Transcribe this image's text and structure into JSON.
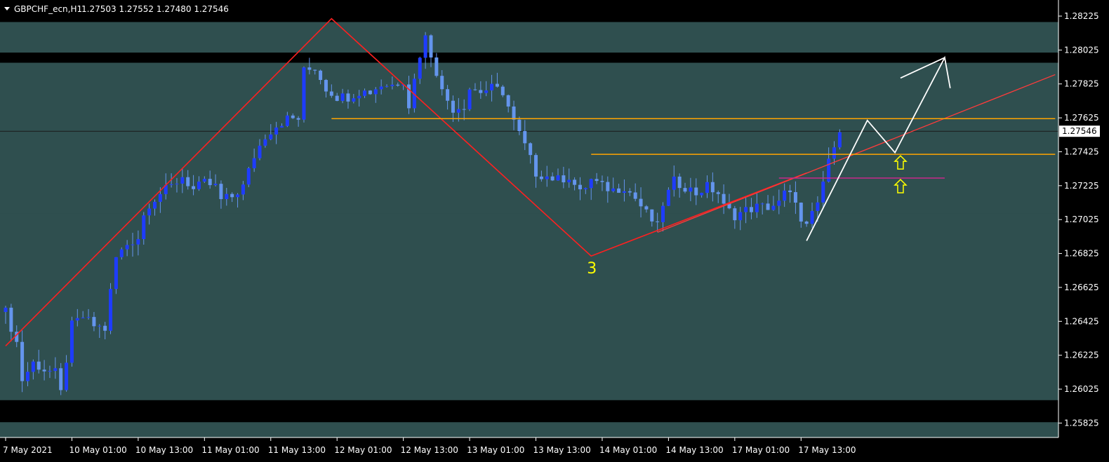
{
  "header": {
    "symbol": "GBPCHF_ecn,H1",
    "ohlc": "1.27503 1.27552 1.27480 1.27546"
  },
  "colors": {
    "background": "#000000",
    "zone_fill": "#2f4f4f",
    "bull_candle": "#1e3cff",
    "bear_candle": "#6495ed",
    "wick": "#6495ed",
    "zigzag": "#ff2020",
    "trendline": "#ff3b3b",
    "orange_line": "#ffa500",
    "magenta_line": "#c8288c",
    "projection": "#ffffff",
    "arrow": "#ffff00",
    "label": "#ffff00",
    "text": "#ffffff",
    "price_tag_bg": "#ffffff"
  },
  "chart_data": {
    "type": "candlestick",
    "symbol": "GBPCHF_ecn",
    "timeframe": "H1",
    "ylim": [
      1.2574,
      1.2832
    ],
    "x_index_range": [
      0,
      190
    ],
    "current_price": "1.27546",
    "y_tick_labels": [
      "1.28225",
      "1.28025",
      "1.27825",
      "1.27625",
      "1.27425",
      "1.27225",
      "1.27025",
      "1.26825",
      "1.26625",
      "1.26425",
      "1.26225",
      "1.26025",
      "1.25825"
    ],
    "x_tick_labels": [
      {
        "label": "7 May 2021",
        "index": 0
      },
      {
        "label": "10 May 01:00",
        "index": 12
      },
      {
        "label": "10 May 13:00",
        "index": 24
      },
      {
        "label": "11 May 01:00",
        "index": 36
      },
      {
        "label": "11 May 13:00",
        "index": 48
      },
      {
        "label": "12 May 01:00",
        "index": 60
      },
      {
        "label": "12 May 13:00",
        "index": 72
      },
      {
        "label": "13 May 01:00",
        "index": 84
      },
      {
        "label": "13 May 13:00",
        "index": 96
      },
      {
        "label": "14 May 01:00",
        "index": 108
      },
      {
        "label": "14 May 13:00",
        "index": 120
      },
      {
        "label": "17 May 01:00",
        "index": 132
      },
      {
        "label": "17 May 13:00",
        "index": 144
      }
    ],
    "close_path": [
      [
        0,
        1.2648
      ],
      [
        2,
        1.263
      ],
      [
        3,
        1.2608
      ],
      [
        5,
        1.2618
      ],
      [
        7,
        1.2614
      ],
      [
        9,
        1.2612
      ],
      [
        10,
        1.26
      ],
      [
        12,
        1.264
      ],
      [
        14,
        1.2645
      ],
      [
        16,
        1.264
      ],
      [
        18,
        1.2638
      ],
      [
        19,
        1.266
      ],
      [
        20,
        1.268
      ],
      [
        22,
        1.2688
      ],
      [
        24,
        1.2692
      ],
      [
        25,
        1.2705
      ],
      [
        26,
        1.2712
      ],
      [
        28,
        1.2718
      ],
      [
        30,
        1.2722
      ],
      [
        32,
        1.2728
      ],
      [
        34,
        1.272
      ],
      [
        36,
        1.2724
      ],
      [
        38,
        1.2722
      ],
      [
        39,
        1.2714
      ],
      [
        41,
        1.2716
      ],
      [
        43,
        1.2722
      ],
      [
        45,
        1.274
      ],
      [
        47,
        1.2752
      ],
      [
        49,
        1.2758
      ],
      [
        51,
        1.2762
      ],
      [
        53,
        1.2762
      ],
      [
        54,
        1.279
      ],
      [
        56,
        1.2792
      ],
      [
        58,
        1.278
      ],
      [
        60,
        1.2775
      ],
      [
        62,
        1.2775
      ],
      [
        64,
        1.2778
      ],
      [
        66,
        1.2778
      ],
      [
        68,
        1.2782
      ],
      [
        70,
        1.2782
      ],
      [
        72,
        1.2785
      ],
      [
        73,
        1.277
      ],
      [
        75,
        1.28
      ],
      [
        76,
        1.281
      ],
      [
        78,
        1.279
      ],
      [
        79,
        1.2778
      ],
      [
        81,
        1.2768
      ],
      [
        83,
        1.277
      ],
      [
        84,
        1.278
      ],
      [
        86,
        1.2778
      ],
      [
        88,
        1.278
      ],
      [
        90,
        1.2778
      ],
      [
        92,
        1.276
      ],
      [
        94,
        1.2746
      ],
      [
        96,
        1.273
      ],
      [
        98,
        1.2728
      ],
      [
        100,
        1.2726
      ],
      [
        102,
        1.2728
      ],
      [
        104,
        1.2718
      ],
      [
        106,
        1.2726
      ],
      [
        108,
        1.2722
      ],
      [
        110,
        1.272
      ],
      [
        112,
        1.2722
      ],
      [
        114,
        1.2715
      ],
      [
        116,
        1.2706
      ],
      [
        118,
        1.2698
      ],
      [
        119,
        1.2712
      ],
      [
        121,
        1.2725
      ],
      [
        123,
        1.2722
      ],
      [
        125,
        1.2718
      ],
      [
        127,
        1.2722
      ],
      [
        129,
        1.2718
      ],
      [
        130,
        1.271
      ],
      [
        132,
        1.2705
      ],
      [
        134,
        1.2708
      ],
      [
        136,
        1.271
      ],
      [
        138,
        1.271
      ],
      [
        140,
        1.2712
      ],
      [
        141,
        1.2718
      ],
      [
        143,
        1.2715
      ],
      [
        144,
        1.27
      ],
      [
        145,
        1.2698
      ],
      [
        146,
        1.2705
      ],
      [
        147,
        1.2712
      ],
      [
        148,
        1.2725
      ],
      [
        149,
        1.2736
      ],
      [
        150,
        1.2748
      ],
      [
        151,
        1.2754
      ]
    ],
    "resistance_zones": [
      {
        "from": 1.2801,
        "to": 1.2819
      },
      {
        "from": 1.2693,
        "to": 1.2795
      },
      {
        "from": 1.2596,
        "to": 1.2706
      },
      {
        "from": 1.2574,
        "to": 1.2583
      }
    ],
    "zigzag": [
      [
        0,
        1.2628
      ],
      [
        59,
        1.2821
      ],
      [
        106,
        1.2681
      ],
      [
        145,
        1.273
      ]
    ],
    "trendline": [
      [
        118,
        1.2695
      ],
      [
        190,
        1.2788
      ]
    ],
    "horizontal_lines": [
      {
        "name": "orange-upper",
        "y": 1.2762,
        "x_from": 59,
        "x_to": 190
      },
      {
        "name": "orange-lower",
        "y": 1.2741,
        "x_from": 106,
        "x_to": 190
      },
      {
        "name": "magenta",
        "y": 1.2727,
        "x_from": 140,
        "x_to": 170
      }
    ],
    "projection": [
      [
        145,
        1.269
      ],
      [
        156,
        1.2761
      ],
      [
        161,
        1.2742
      ],
      [
        170,
        1.2798
      ],
      [
        171,
        1.278
      ]
    ],
    "projection_head": [
      [
        162,
        1.2786
      ],
      [
        170,
        1.2798
      ]
    ],
    "up_arrows": [
      [
        162,
        1.2736
      ],
      [
        162,
        1.2722
      ]
    ],
    "labels": [
      {
        "text": "3",
        "index": 106,
        "y": 1.2674
      }
    ]
  }
}
